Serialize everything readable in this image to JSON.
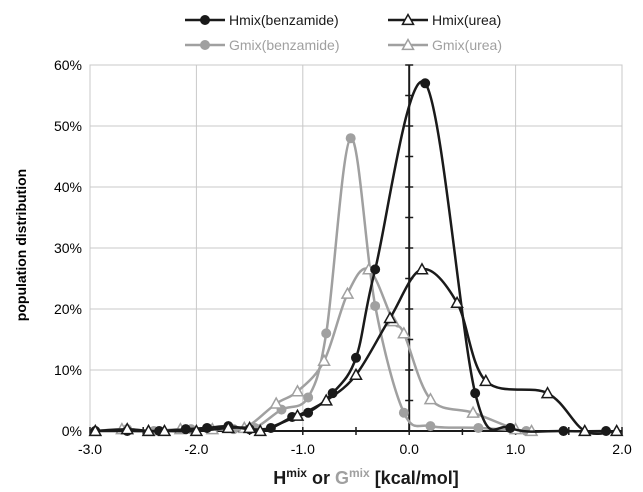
{
  "chart_data": {
    "type": "line",
    "xlim": [
      -3.0,
      2.0
    ],
    "ylim": [
      0,
      60
    ],
    "x_ticks": [
      "-3.0",
      "-2.0",
      "-1.0",
      "0.0",
      "1.0",
      "2.0"
    ],
    "y_ticks": [
      "0%",
      "10%",
      "20%",
      "30%",
      "40%",
      "50%",
      "60%"
    ],
    "ylabel": "population distribution",
    "xlabel_parts": {
      "h": "H",
      "sup1": "mix",
      "or": " or ",
      "g": "G",
      "sup2": "mix",
      "unit": " [kcal/mol]"
    },
    "grid": true,
    "legend_position": "top",
    "colors": {
      "black": "#1a1a1a",
      "gray": "#a0a0a0",
      "grid": "#c8c8c8"
    },
    "series": [
      {
        "name": "Hmix(benzamide)",
        "color": "#1a1a1a",
        "marker": "circle",
        "x": [
          -2.95,
          -2.65,
          -2.35,
          -2.1,
          -1.9,
          -1.7,
          -1.5,
          -1.3,
          -1.1,
          -0.95,
          -0.72,
          -0.5,
          -0.32,
          0.15,
          0.62,
          0.95,
          1.45,
          1.85
        ],
        "y": [
          0,
          0,
          0,
          0.3,
          0.5,
          0.8,
          0.3,
          0.5,
          2.3,
          3,
          6.2,
          12,
          26.5,
          57,
          6.2,
          0.5,
          0,
          0
        ]
      },
      {
        "name": "Hmix(urea)",
        "color": "#1a1a1a",
        "marker": "triangle",
        "x": [
          -2.95,
          -2.65,
          -2.45,
          -2.3,
          -2.0,
          -1.7,
          -1.5,
          -1.4,
          -1.05,
          -0.78,
          -0.5,
          -0.18,
          0.12,
          0.45,
          0.72,
          1.3,
          1.65,
          1.95
        ],
        "y": [
          0,
          0.3,
          0,
          0,
          0,
          0.5,
          0.5,
          0,
          2.5,
          5,
          9.2,
          18.5,
          26.5,
          21,
          8.2,
          6.2,
          0,
          0
        ]
      },
      {
        "name": "Gmix(benzamide)",
        "color": "#a0a0a0",
        "marker": "circle",
        "x": [
          -2.95,
          -2.65,
          -2.4,
          -2.05,
          -1.65,
          -1.45,
          -1.2,
          -0.95,
          -0.78,
          -0.55,
          -0.32,
          -0.05,
          0.2,
          0.65,
          1.1
        ],
        "y": [
          0,
          0.3,
          0,
          0.3,
          0.3,
          0.5,
          3.5,
          5.5,
          16,
          48,
          20.5,
          3,
          0.8,
          0.5,
          0
        ]
      },
      {
        "name": "Gmix(urea)",
        "color": "#a0a0a0",
        "marker": "triangle",
        "x": [
          -2.95,
          -2.7,
          -2.45,
          -2.15,
          -1.85,
          -1.55,
          -1.25,
          -1.05,
          -0.8,
          -0.58,
          -0.38,
          -0.15,
          -0.05,
          0.2,
          0.6,
          1.0,
          1.15
        ],
        "y": [
          0,
          0.3,
          0,
          0.3,
          0.3,
          0.5,
          4.5,
          6.5,
          11.5,
          22.5,
          26.5,
          18,
          16,
          5.2,
          3,
          0.3,
          0
        ]
      }
    ]
  }
}
